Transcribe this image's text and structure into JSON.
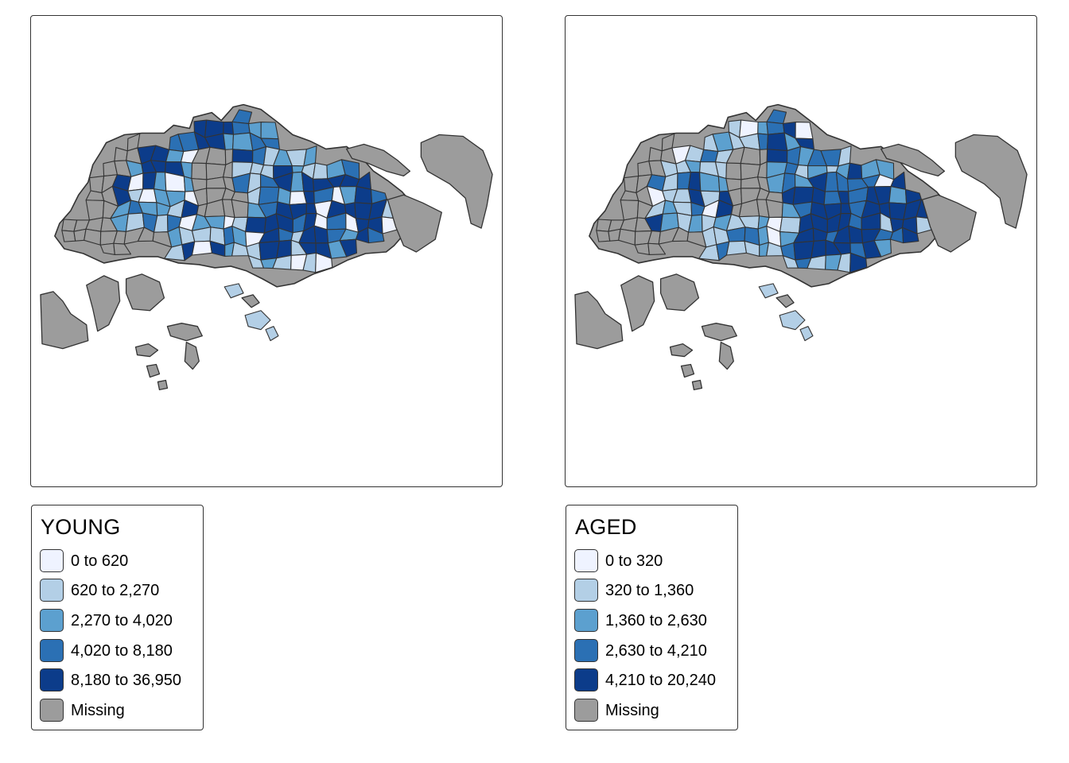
{
  "maps": [
    {
      "id": "left",
      "legend_title": "YOUNG",
      "legend_items": [
        {
          "label": "0 to 620",
          "color": "#eff3ff"
        },
        {
          "label": "620 to 2,270",
          "color": "#b3cfe6"
        },
        {
          "label": "2,270 to 4,020",
          "color": "#5ca0cf"
        },
        {
          "label": "4,020 to 8,180",
          "color": "#2b70b4"
        },
        {
          "label": "8,180 to 36,950",
          "color": "#0c3c8a"
        },
        {
          "label": "Missing",
          "color": "#9c9c9c"
        }
      ]
    },
    {
      "id": "right",
      "legend_title": "AGED",
      "legend_items": [
        {
          "label": "0 to 320",
          "color": "#eff3ff"
        },
        {
          "label": "320 to 1,360",
          "color": "#b3cfe6"
        },
        {
          "label": "1,360 to 2,630",
          "color": "#5ca0cf"
        },
        {
          "label": "2,630 to 4,210",
          "color": "#2b70b4"
        },
        {
          "label": "4,210 to 20,240",
          "color": "#0c3c8a"
        },
        {
          "label": "Missing",
          "color": "#9c9c9c"
        }
      ]
    }
  ],
  "colors": {
    "missing": "#9c9c9c",
    "class_1": "#eff3ff",
    "class_2": "#b3cfe6",
    "class_3": "#5ca0cf",
    "class_4": "#2b70b4",
    "class_5": "#0c3c8a",
    "outline": "#333333"
  }
}
